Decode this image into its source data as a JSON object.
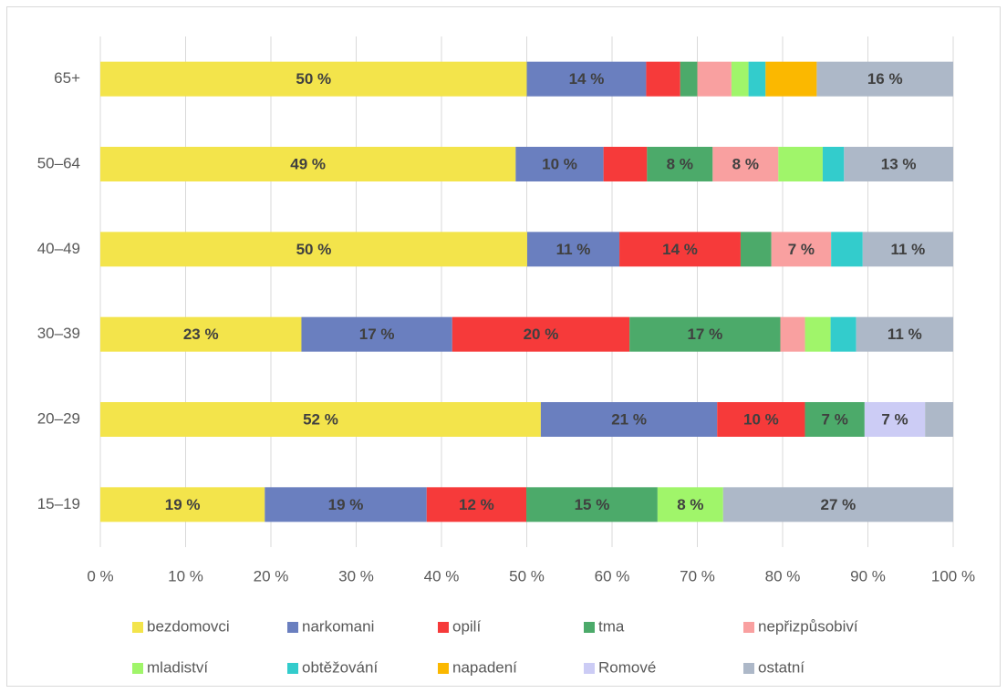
{
  "chart_data": {
    "type": "stacked_bar_percent",
    "orientation": "horizontal",
    "categories": [
      "65+",
      "50–64",
      "40–49",
      "30–39",
      "20–29",
      "15–19"
    ],
    "xlim": [
      0,
      100
    ],
    "xticks": [
      {
        "value": 0,
        "label": "0 %"
      },
      {
        "value": 10,
        "label": "10 %"
      },
      {
        "value": 20,
        "label": "20 %"
      },
      {
        "value": 30,
        "label": "30 %"
      },
      {
        "value": 40,
        "label": "40 %"
      },
      {
        "value": 50,
        "label": "50 %"
      },
      {
        "value": 60,
        "label": "60 %"
      },
      {
        "value": 70,
        "label": "70 %"
      },
      {
        "value": 80,
        "label": "80 %"
      },
      {
        "value": 90,
        "label": "90 %"
      },
      {
        "value": 100,
        "label": "100 %"
      }
    ],
    "grid": true,
    "legend": "bottom",
    "series": [
      {
        "name": "bezdomovci",
        "color": "#f3e44b",
        "values": [
          50,
          48.7,
          50,
          22.8,
          51.7,
          19.3
        ],
        "value_labels": [
          "50 %",
          "49 %",
          "50 %",
          "23 %",
          "52 %",
          "19 %"
        ]
      },
      {
        "name": "narkomani",
        "color": "#6a7fbf",
        "values": [
          14,
          10.3,
          10.8,
          17.1,
          20.7,
          19
        ],
        "value_labels": [
          "14 %",
          "10 %",
          "11 %",
          "17 %",
          "21 %",
          "19 %"
        ]
      },
      {
        "name": "opilí",
        "color": "#f63a3a",
        "values": [
          4,
          5.1,
          14.2,
          20.1,
          10.3,
          11.7
        ],
        "value_labels": [
          null,
          null,
          "14 %",
          "20 %",
          "10 %",
          "12 %"
        ]
      },
      {
        "name": "tma",
        "color": "#4caa6a",
        "values": [
          2,
          7.7,
          3.6,
          17.1,
          7,
          15.4
        ],
        "value_labels": [
          null,
          "8 %",
          null,
          "17 %",
          "7 %",
          "15 %"
        ]
      },
      {
        "name": "nepřizpůsobiví",
        "color": "#f9a0a0",
        "values": [
          4,
          7.7,
          7,
          2.8,
          0,
          0
        ],
        "value_labels": [
          null,
          "8 %",
          "7 %",
          null,
          null,
          null
        ]
      },
      {
        "name": "mladiství",
        "color": "#a0f56a",
        "values": [
          2,
          5.2,
          0,
          2.9,
          0,
          7.7
        ],
        "value_labels": [
          null,
          null,
          null,
          null,
          null,
          "8 %"
        ]
      },
      {
        "name": "obtěžování",
        "color": "#33cccc",
        "values": [
          2,
          2.5,
          3.7,
          2.9,
          0,
          0
        ]
      },
      {
        "name": "napadení",
        "color": "#fbb800",
        "values": [
          6,
          0,
          0,
          0,
          0,
          0
        ]
      },
      {
        "name": "Romové",
        "color": "#ccccf5",
        "values": [
          0,
          0,
          0,
          0,
          7.1,
          0
        ],
        "value_labels": [
          null,
          null,
          null,
          null,
          "7 %",
          null
        ]
      },
      {
        "name": "ostatní",
        "color": "#adb8c8",
        "values": [
          16,
          12.8,
          10.6,
          11,
          3.3,
          27
        ],
        "value_labels": [
          "16 %",
          "13 %",
          "11 %",
          "11 %",
          null,
          "27 %"
        ]
      }
    ]
  }
}
